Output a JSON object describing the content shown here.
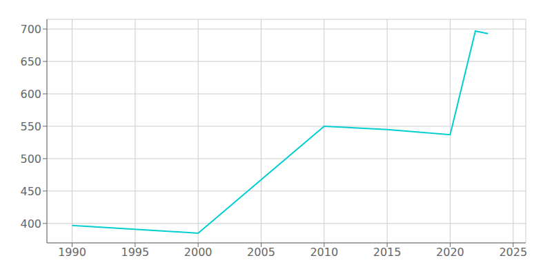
{
  "chart_data": {
    "type": "line",
    "x": [
      1990,
      2000,
      2010,
      2015,
      2020,
      2022,
      2023
    ],
    "values": [
      397,
      385,
      550,
      545,
      537,
      697,
      693
    ],
    "color": "#00CED1",
    "xlim": [
      1988,
      2026
    ],
    "ylim": [
      370,
      715
    ],
    "xticks": [
      1990,
      1995,
      2000,
      2005,
      2010,
      2015,
      2020,
      2025
    ],
    "yticks": [
      400,
      450,
      500,
      550,
      600,
      650,
      700
    ],
    "grid": true
  }
}
